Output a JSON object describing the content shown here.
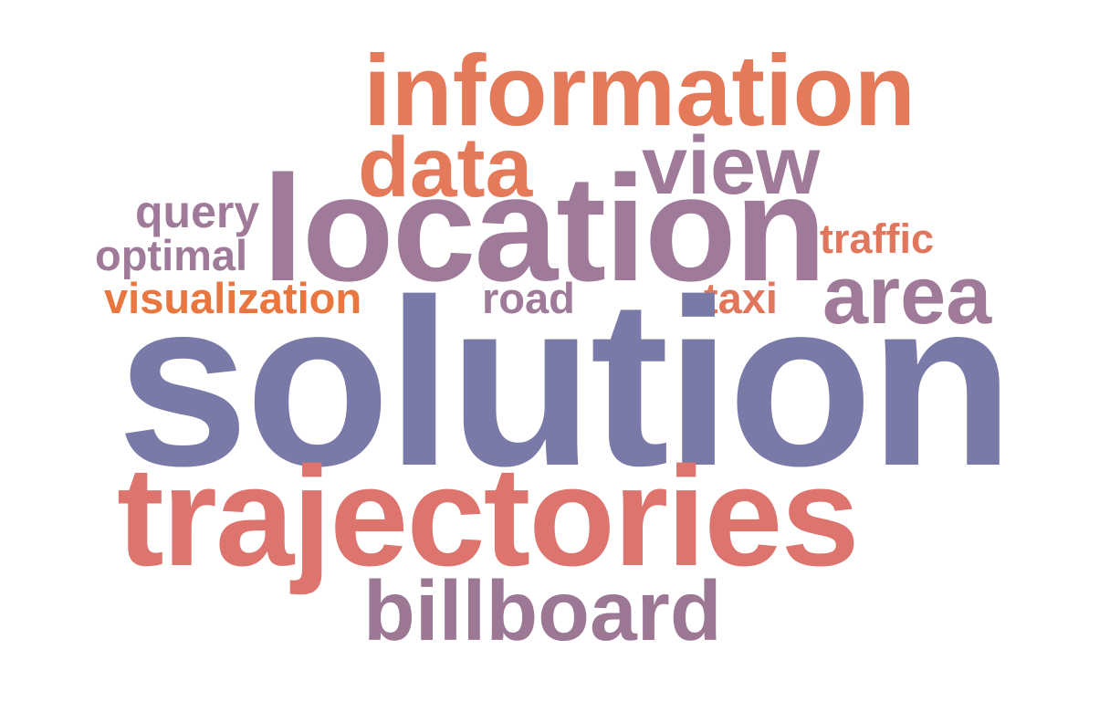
{
  "word_cloud": {
    "words": [
      {
        "id": "information",
        "text": "information",
        "color": "#E57A5A"
      },
      {
        "id": "data",
        "text": "data",
        "color": "#E57A5A"
      },
      {
        "id": "view",
        "text": "view",
        "color": "#A07A99"
      },
      {
        "id": "location",
        "text": "location",
        "color": "#A07A99"
      },
      {
        "id": "query",
        "text": "query",
        "color": "#A07A99"
      },
      {
        "id": "optimal",
        "text": "optimal",
        "color": "#A07A99"
      },
      {
        "id": "traffic",
        "text": "traffic",
        "color": "#E0775C"
      },
      {
        "id": "area",
        "text": "area",
        "color": "#A07A99"
      },
      {
        "id": "visualization",
        "text": "visualization",
        "color": "#E8763E"
      },
      {
        "id": "road",
        "text": "road",
        "color": "#A07A99"
      },
      {
        "id": "taxi",
        "text": "taxi",
        "color": "#E0775C"
      },
      {
        "id": "solution",
        "text": "solution",
        "color": "#7A7AA8"
      },
      {
        "id": "trajectories",
        "text": "trajectories",
        "color": "#DD746E"
      },
      {
        "id": "billboard",
        "text": "billboard",
        "color": "#9C7894"
      }
    ]
  }
}
